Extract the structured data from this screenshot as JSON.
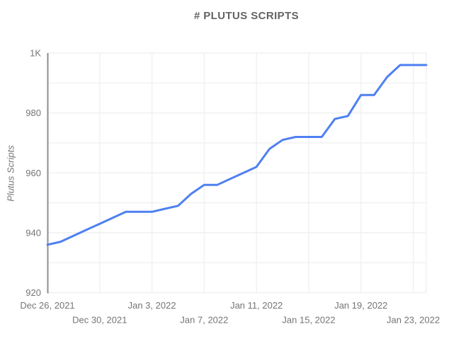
{
  "chart": {
    "title": "# PLUTUS SCRIPTS",
    "y_axis_title": "Plutus Scripts"
  },
  "colors": {
    "background": "#ffffff",
    "line": "#4e80f1",
    "title_text": "#636363",
    "tick_text": "#757575",
    "gridline": "#f0f0f0",
    "axis_line": "#8f8f8f"
  },
  "chart_data": {
    "type": "line",
    "title": "# PLUTUS SCRIPTS",
    "xlabel": "",
    "ylabel": "Plutus Scripts",
    "ylim": [
      920,
      1000
    ],
    "y_gridline_step": 10,
    "grid": true,
    "legend": "none",
    "y_ticks": [
      {
        "value": 1000,
        "label": "1K"
      },
      {
        "value": 980,
        "label": "980"
      },
      {
        "value": 960,
        "label": "960"
      },
      {
        "value": 940,
        "label": "940"
      },
      {
        "value": 920,
        "label": "920"
      }
    ],
    "x_ticks": [
      {
        "label": "Dec 26, 2021",
        "day_offset": 0,
        "row": 1
      },
      {
        "label": "Dec 30, 2021",
        "day_offset": 4,
        "row": 2
      },
      {
        "label": "Jan 3, 2022",
        "day_offset": 8,
        "row": 1
      },
      {
        "label": "Jan 7, 2022",
        "day_offset": 12,
        "row": 2
      },
      {
        "label": "Jan 11, 2022",
        "day_offset": 16,
        "row": 1
      },
      {
        "label": "Jan 15, 2022",
        "day_offset": 20,
        "row": 2
      },
      {
        "label": "Jan 19, 2022",
        "day_offset": 24,
        "row": 1
      },
      {
        "label": "Jan 23, 2022",
        "day_offset": 28,
        "row": 2
      }
    ],
    "series": [
      {
        "name": "Plutus Scripts",
        "points": [
          {
            "date": "Dec 26, 2021",
            "value": 936
          },
          {
            "date": "Dec 27, 2021",
            "value": 937
          },
          {
            "date": "Dec 28, 2021",
            "value": 939
          },
          {
            "date": "Dec 29, 2021",
            "value": 941
          },
          {
            "date": "Dec 30, 2021",
            "value": 943
          },
          {
            "date": "Dec 31, 2021",
            "value": 945
          },
          {
            "date": "Jan 1, 2022",
            "value": 947
          },
          {
            "date": "Jan 2, 2022",
            "value": 947
          },
          {
            "date": "Jan 3, 2022",
            "value": 947
          },
          {
            "date": "Jan 4, 2022",
            "value": 948
          },
          {
            "date": "Jan 5, 2022",
            "value": 949
          },
          {
            "date": "Jan 6, 2022",
            "value": 953
          },
          {
            "date": "Jan 7, 2022",
            "value": 956
          },
          {
            "date": "Jan 8, 2022",
            "value": 956
          },
          {
            "date": "Jan 9, 2022",
            "value": 958
          },
          {
            "date": "Jan 10, 2022",
            "value": 960
          },
          {
            "date": "Jan 11, 2022",
            "value": 962
          },
          {
            "date": "Jan 12, 2022",
            "value": 968
          },
          {
            "date": "Jan 13, 2022",
            "value": 971
          },
          {
            "date": "Jan 14, 2022",
            "value": 972
          },
          {
            "date": "Jan 15, 2022",
            "value": 972
          },
          {
            "date": "Jan 16, 2022",
            "value": 972
          },
          {
            "date": "Jan 17, 2022",
            "value": 978
          },
          {
            "date": "Jan 18, 2022",
            "value": 979
          },
          {
            "date": "Jan 19, 2022",
            "value": 986
          },
          {
            "date": "Jan 20, 2022",
            "value": 986
          },
          {
            "date": "Jan 21, 2022",
            "value": 992
          },
          {
            "date": "Jan 22, 2022",
            "value": 996
          },
          {
            "date": "Jan 23, 2022",
            "value": 996
          },
          {
            "date": "Jan 24, 2022",
            "value": 996
          }
        ]
      }
    ]
  }
}
